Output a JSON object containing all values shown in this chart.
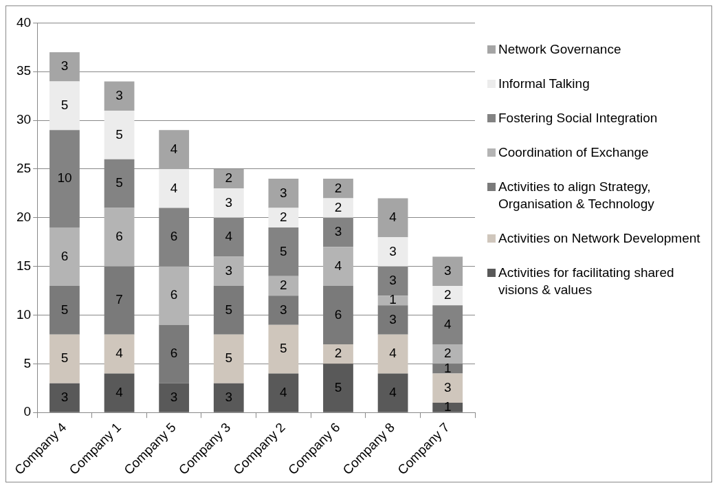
{
  "chart_data": {
    "type": "bar",
    "stacked": true,
    "categories": [
      "Company 4",
      "Company 1",
      "Company 5",
      "Company 3",
      "Company 2",
      "Company 6",
      "Company 8",
      "Company 7"
    ],
    "series": [
      {
        "name": "Activities for facilitating shared visions & values",
        "color": "#595959",
        "values": [
          3,
          4,
          3,
          3,
          4,
          5,
          4,
          1
        ]
      },
      {
        "name": "Activities on Network Development",
        "color": "#cfc6bc",
        "values": [
          5,
          4,
          null,
          5,
          5,
          2,
          4,
          3
        ]
      },
      {
        "name": "Activities to align Strategy, Organisation & Technology",
        "color": "#7a7a7a",
        "values": [
          5,
          7,
          6,
          5,
          3,
          6,
          3,
          1
        ]
      },
      {
        "name": "Coordination of Exchange",
        "color": "#b4b4b4",
        "values": [
          6,
          6,
          6,
          3,
          2,
          4,
          1,
          2
        ]
      },
      {
        "name": "Fostering Social Integration",
        "color": "#838383",
        "values": [
          10,
          5,
          6,
          4,
          5,
          3,
          3,
          4
        ]
      },
      {
        "name": "Informal Talking",
        "color": "#ececec",
        "values": [
          5,
          5,
          4,
          3,
          2,
          2,
          3,
          2
        ]
      },
      {
        "name": "Network Governance",
        "color": "#a5a5a5",
        "values": [
          3,
          3,
          4,
          2,
          3,
          2,
          4,
          3
        ]
      }
    ],
    "ylim": [
      0,
      40
    ],
    "yticks": [
      0,
      5,
      10,
      15,
      20,
      25,
      30,
      35,
      40
    ],
    "grid": "y",
    "legend": "right",
    "data_labels": true
  }
}
